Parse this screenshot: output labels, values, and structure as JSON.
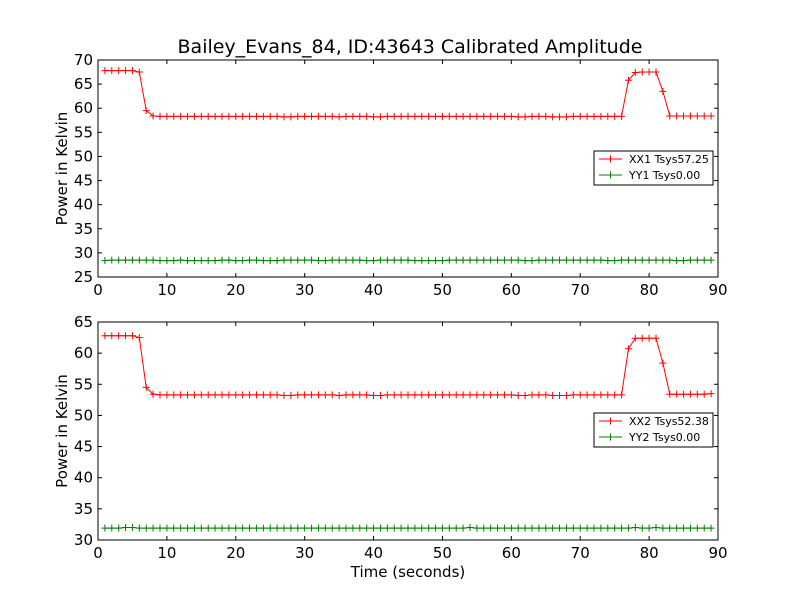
{
  "figure": {
    "title": "Bailey_Evans_84, ID:43643 Calibrated Amplitude"
  },
  "chart_data": [
    {
      "type": "line",
      "title": "Bailey_Evans_84, ID:43643 Calibrated Amplitude",
      "xlabel": "",
      "ylabel": "Power in Kelvin",
      "xlim": [
        0,
        90
      ],
      "ylim": [
        25,
        70
      ],
      "xticks": [
        0,
        10,
        20,
        30,
        40,
        50,
        60,
        70,
        80,
        90
      ],
      "yticks": [
        25,
        30,
        35,
        40,
        45,
        50,
        55,
        60,
        65,
        70
      ],
      "grid": false,
      "legend_position": "right",
      "x": [
        1,
        2,
        3,
        4,
        5,
        6,
        7,
        8,
        9,
        10,
        11,
        12,
        13,
        14,
        15,
        16,
        17,
        18,
        19,
        20,
        21,
        22,
        23,
        24,
        25,
        26,
        27,
        28,
        29,
        30,
        31,
        32,
        33,
        34,
        35,
        36,
        37,
        38,
        39,
        40,
        41,
        42,
        43,
        44,
        45,
        46,
        47,
        48,
        49,
        50,
        51,
        52,
        53,
        54,
        55,
        56,
        57,
        58,
        59,
        60,
        61,
        62,
        63,
        64,
        65,
        66,
        67,
        68,
        69,
        70,
        71,
        72,
        73,
        74,
        75,
        76,
        77,
        78,
        79,
        80,
        81,
        82,
        83,
        84,
        85,
        86,
        87,
        88,
        89
      ],
      "series": [
        {
          "name": "XX1 Tsys57.25",
          "color": "#ff0000",
          "values": [
            67.8,
            67.8,
            67.8,
            67.8,
            67.8,
            67.5,
            59.5,
            58.4,
            58.3,
            58.3,
            58.3,
            58.3,
            58.3,
            58.3,
            58.3,
            58.3,
            58.3,
            58.3,
            58.3,
            58.3,
            58.3,
            58.3,
            58.3,
            58.3,
            58.3,
            58.3,
            58.2,
            58.2,
            58.3,
            58.3,
            58.3,
            58.3,
            58.3,
            58.3,
            58.2,
            58.3,
            58.3,
            58.3,
            58.3,
            58.2,
            58.2,
            58.3,
            58.3,
            58.3,
            58.3,
            58.3,
            58.3,
            58.3,
            58.3,
            58.3,
            58.3,
            58.3,
            58.3,
            58.3,
            58.3,
            58.3,
            58.3,
            58.3,
            58.3,
            58.3,
            58.2,
            58.2,
            58.3,
            58.3,
            58.3,
            58.2,
            58.2,
            58.2,
            58.3,
            58.3,
            58.3,
            58.3,
            58.3,
            58.3,
            58.3,
            58.3,
            65.8,
            67.4,
            67.5,
            67.5,
            67.5,
            63.5,
            58.4,
            58.4,
            58.4,
            58.4,
            58.4,
            58.4,
            58.4
          ]
        },
        {
          "name": "YY1 Tsys0.00",
          "color": "#008000",
          "values": [
            28.4,
            28.5,
            28.5,
            28.5,
            28.5,
            28.5,
            28.5,
            28.5,
            28.4,
            28.4,
            28.4,
            28.5,
            28.4,
            28.4,
            28.4,
            28.4,
            28.4,
            28.5,
            28.5,
            28.4,
            28.4,
            28.5,
            28.5,
            28.4,
            28.4,
            28.4,
            28.5,
            28.5,
            28.5,
            28.5,
            28.5,
            28.4,
            28.4,
            28.5,
            28.5,
            28.5,
            28.5,
            28.5,
            28.4,
            28.4,
            28.5,
            28.5,
            28.5,
            28.5,
            28.5,
            28.4,
            28.4,
            28.4,
            28.4,
            28.4,
            28.5,
            28.5,
            28.5,
            28.5,
            28.5,
            28.5,
            28.5,
            28.5,
            28.5,
            28.5,
            28.5,
            28.4,
            28.4,
            28.5,
            28.5,
            28.5,
            28.5,
            28.5,
            28.5,
            28.5,
            28.5,
            28.5,
            28.5,
            28.4,
            28.4,
            28.5,
            28.5,
            28.5,
            28.5,
            28.5,
            28.5,
            28.5,
            28.5,
            28.4,
            28.4,
            28.5,
            28.5,
            28.5,
            28.5
          ]
        }
      ]
    },
    {
      "type": "line",
      "title": "",
      "xlabel": "Time (seconds)",
      "ylabel": "Power in Kelvin",
      "xlim": [
        0,
        90
      ],
      "ylim": [
        30,
        65
      ],
      "xticks": [
        0,
        10,
        20,
        30,
        40,
        50,
        60,
        70,
        80,
        90
      ],
      "yticks": [
        30,
        35,
        40,
        45,
        50,
        55,
        60,
        65
      ],
      "grid": false,
      "legend_position": "right",
      "x": [
        1,
        2,
        3,
        4,
        5,
        6,
        7,
        8,
        9,
        10,
        11,
        12,
        13,
        14,
        15,
        16,
        17,
        18,
        19,
        20,
        21,
        22,
        23,
        24,
        25,
        26,
        27,
        28,
        29,
        30,
        31,
        32,
        33,
        34,
        35,
        36,
        37,
        38,
        39,
        40,
        41,
        42,
        43,
        44,
        45,
        46,
        47,
        48,
        49,
        50,
        51,
        52,
        53,
        54,
        55,
        56,
        57,
        58,
        59,
        60,
        61,
        62,
        63,
        64,
        65,
        66,
        67,
        68,
        69,
        70,
        71,
        72,
        73,
        74,
        75,
        76,
        77,
        78,
        79,
        80,
        81,
        82,
        83,
        84,
        85,
        86,
        87,
        88,
        89
      ],
      "series": [
        {
          "name": "XX2 Tsys52.38",
          "color": "#ff0000",
          "values": [
            62.8,
            62.8,
            62.8,
            62.8,
            62.8,
            62.5,
            54.5,
            53.4,
            53.3,
            53.3,
            53.3,
            53.3,
            53.3,
            53.3,
            53.3,
            53.3,
            53.3,
            53.3,
            53.3,
            53.3,
            53.3,
            53.3,
            53.3,
            53.3,
            53.3,
            53.3,
            53.2,
            53.2,
            53.3,
            53.3,
            53.3,
            53.3,
            53.3,
            53.3,
            53.2,
            53.3,
            53.3,
            53.3,
            53.3,
            53.2,
            53.2,
            53.3,
            53.3,
            53.3,
            53.3,
            53.3,
            53.3,
            53.3,
            53.3,
            53.3,
            53.3,
            53.3,
            53.3,
            53.3,
            53.3,
            53.3,
            53.3,
            53.3,
            53.3,
            53.3,
            53.2,
            53.2,
            53.3,
            53.3,
            53.3,
            53.2,
            53.2,
            53.2,
            53.3,
            53.3,
            53.3,
            53.3,
            53.3,
            53.3,
            53.3,
            53.3,
            60.7,
            62.4,
            62.4,
            62.4,
            62.4,
            58.4,
            53.4,
            53.4,
            53.4,
            53.4,
            53.4,
            53.4,
            53.5
          ]
        },
        {
          "name": "YY2 Tsys0.00",
          "color": "#008000",
          "values": [
            31.9,
            31.9,
            31.9,
            32.0,
            32.0,
            31.9,
            31.9,
            31.9,
            31.9,
            31.9,
            31.9,
            31.9,
            31.9,
            31.9,
            31.9,
            31.9,
            31.9,
            31.9,
            31.9,
            31.9,
            31.9,
            31.9,
            31.9,
            31.9,
            31.9,
            31.9,
            31.9,
            31.9,
            31.9,
            31.9,
            31.9,
            31.9,
            31.9,
            31.9,
            31.9,
            31.9,
            31.9,
            31.9,
            31.9,
            31.9,
            31.9,
            31.9,
            31.9,
            31.9,
            31.9,
            31.9,
            31.9,
            31.9,
            31.9,
            31.9,
            31.9,
            31.9,
            31.9,
            32.0,
            31.9,
            31.9,
            31.9,
            31.9,
            31.9,
            31.9,
            31.9,
            31.9,
            31.9,
            31.9,
            31.9,
            31.9,
            31.9,
            31.9,
            31.9,
            31.9,
            31.9,
            31.9,
            31.9,
            31.9,
            31.9,
            31.9,
            31.9,
            32.0,
            31.9,
            31.9,
            32.0,
            31.9,
            31.9,
            31.9,
            31.9,
            31.9,
            31.9,
            31.9,
            31.9
          ]
        }
      ]
    }
  ]
}
